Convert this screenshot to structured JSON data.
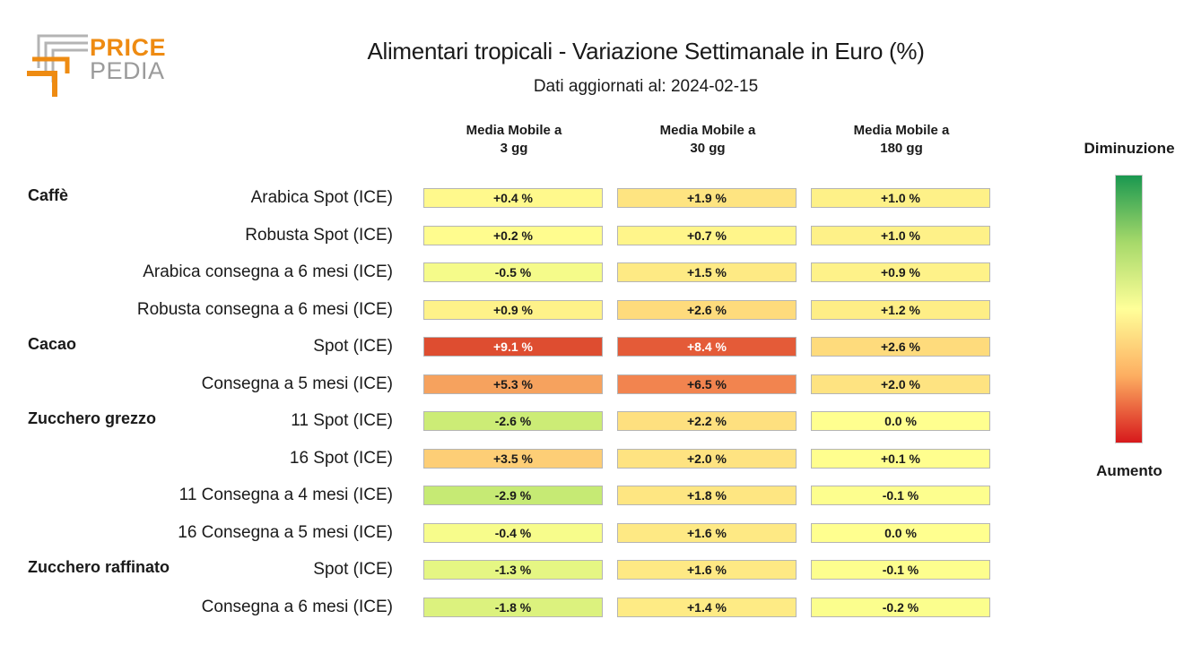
{
  "logo": {
    "word1": "PRICE",
    "word2": "PEDIA"
  },
  "title": "Alimentari tropicali - Variazione Settimanale in Euro (%)",
  "subtitle": "Dati aggiornati al: 2024-02-15",
  "legend": {
    "top": "Diminuzione",
    "bottom": "Aumento",
    "colors": [
      "#1a9850",
      "#a6d96a",
      "#ffff99",
      "#fdae61",
      "#d7191c"
    ]
  },
  "chart_data": {
    "type": "table",
    "title": "Alimentari tropicali - Variazione Settimanale in Euro (%)",
    "subtitle": "Dati aggiornati al: 2024-02-15",
    "columns": [
      {
        "line1": "Media Mobile a",
        "line2": "3 gg"
      },
      {
        "line1": "Media Mobile a",
        "line2": "30 gg"
      },
      {
        "line1": "Media Mobile a",
        "line2": "180 gg"
      }
    ],
    "groups": [
      {
        "name": "Caffè",
        "rows": [
          {
            "label": "Arabica Spot (ICE)",
            "values": [
              0.4,
              1.9,
              1.0
            ],
            "texts": [
              "+0.4 %",
              "+1.9 %",
              "+1.0 %"
            ]
          },
          {
            "label": "Robusta Spot (ICE)",
            "values": [
              0.2,
              0.7,
              1.0
            ],
            "texts": [
              "+0.2 %",
              "+0.7 %",
              "+1.0 %"
            ]
          },
          {
            "label": "Arabica consegna a 6 mesi (ICE)",
            "values": [
              -0.5,
              1.5,
              0.9
            ],
            "texts": [
              "-0.5 %",
              "+1.5 %",
              "+0.9 %"
            ]
          },
          {
            "label": "Robusta consegna a 6 mesi (ICE)",
            "values": [
              0.9,
              2.6,
              1.2
            ],
            "texts": [
              "+0.9 %",
              "+2.6 %",
              "+1.2 %"
            ]
          }
        ]
      },
      {
        "name": "Cacao",
        "rows": [
          {
            "label": "Spot (ICE)",
            "values": [
              9.1,
              8.4,
              2.6
            ],
            "texts": [
              "+9.1 %",
              "+8.4 %",
              "+2.6 %"
            ]
          },
          {
            "label": "Consegna a 5 mesi (ICE)",
            "values": [
              5.3,
              6.5,
              2.0
            ],
            "texts": [
              "+5.3 %",
              "+6.5 %",
              "+2.0 %"
            ]
          }
        ]
      },
      {
        "name": "Zucchero grezzo",
        "rows": [
          {
            "label": "11 Spot (ICE)",
            "values": [
              -2.6,
              2.2,
              0.0
            ],
            "texts": [
              "-2.6 %",
              "+2.2 %",
              "0.0 %"
            ]
          },
          {
            "label": "16 Spot (ICE)",
            "values": [
              3.5,
              2.0,
              0.1
            ],
            "texts": [
              "+3.5 %",
              "+2.0 %",
              "+0.1 %"
            ]
          },
          {
            "label": "11 Consegna a 4 mesi (ICE)",
            "values": [
              -2.9,
              1.8,
              -0.1
            ],
            "texts": [
              "-2.9 %",
              "+1.8 %",
              "-0.1 %"
            ]
          },
          {
            "label": "16 Consegna a 5 mesi (ICE)",
            "values": [
              -0.4,
              1.6,
              0.0
            ],
            "texts": [
              "-0.4 %",
              "+1.6 %",
              "0.0 %"
            ]
          }
        ]
      },
      {
        "name": "Zucchero raffinato",
        "rows": [
          {
            "label": "Spot (ICE)",
            "values": [
              -1.3,
              1.6,
              -0.1
            ],
            "texts": [
              "-1.3 %",
              "+1.6 %",
              "-0.1 %"
            ]
          },
          {
            "label": "Consegna a 6 mesi (ICE)",
            "values": [
              -1.8,
              1.4,
              -0.2
            ],
            "texts": [
              "-1.8 %",
              "+1.4 %",
              "-0.2 %"
            ]
          }
        ]
      }
    ]
  }
}
